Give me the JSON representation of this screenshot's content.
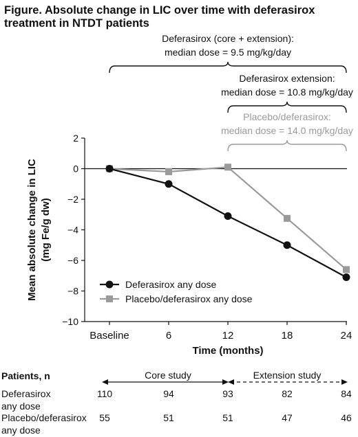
{
  "title_lines": [
    "Figure. Absolute change in LIC over time with deferasirox",
    "treatment in NTDT patients"
  ],
  "brackets": [
    {
      "lines": [
        "Deferasirox (core + extension):",
        "median dose = 9.5 mg/kg/day"
      ],
      "from": "Baseline",
      "to": "24",
      "color": "#111111"
    },
    {
      "lines": [
        "Deferasirox extension:",
        "median dose = 10.8 mg/kg/day"
      ],
      "from": "12",
      "to": "24",
      "color": "#111111"
    },
    {
      "lines": [
        "Placebo/deferasirox:",
        "median dose = 14.0 mg/kg/day"
      ],
      "from": "12",
      "to": "24",
      "color": "#9a9a9a"
    }
  ],
  "chart_data": {
    "type": "line",
    "x": [
      "Baseline",
      "6",
      "12",
      "18",
      "24"
    ],
    "xlabel": "Time (months)",
    "ylabel_lines": [
      "Mean absolute change in LIC",
      "(mg Fe/g dw)"
    ],
    "ylim": [
      -10,
      2
    ],
    "yticks": [
      2,
      0,
      -2,
      -4,
      -6,
      -8,
      -10
    ],
    "ytick_labels": [
      "2",
      "0",
      "−2",
      "−4",
      "−6",
      "−8",
      "−10"
    ],
    "reference_line": 0,
    "series": [
      {
        "name": "Deferasirox any dose",
        "marker": "circle",
        "color": "#111111",
        "values": [
          0,
          -1.0,
          -3.1,
          -5.0,
          -7.1
        ]
      },
      {
        "name": "Placebo/deferasirox any dose",
        "marker": "square",
        "color": "#9a9a9a",
        "values": [
          0,
          -0.2,
          0.1,
          -3.25,
          -6.6
        ]
      }
    ],
    "legend_position": "lower-left"
  },
  "patients_table": {
    "header": "Patients, n",
    "core_label": "Core study",
    "extension_label": "Extension study",
    "rows": [
      {
        "label_lines": [
          "Deferasirox",
          "any dose"
        ],
        "values": [
          "110",
          "94",
          "93",
          "82",
          "84"
        ]
      },
      {
        "label_lines": [
          "Placebo/deferasirox",
          "any dose"
        ],
        "values": [
          "55",
          "51",
          "51",
          "47",
          "46"
        ]
      }
    ]
  }
}
